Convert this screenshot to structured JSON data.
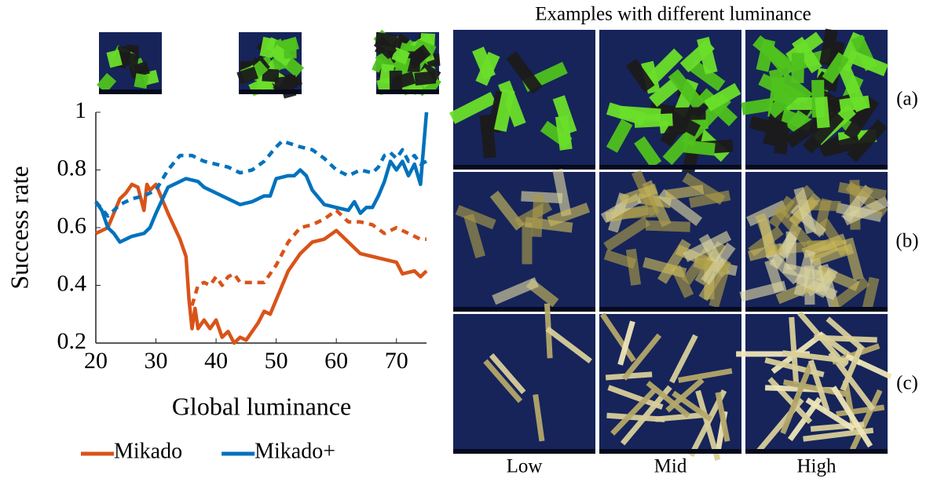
{
  "chart_data": {
    "type": "line",
    "xlabel": "Global luminance",
    "ylabel": "Success rate",
    "xlim": [
      20,
      75
    ],
    "ylim": [
      0.2,
      1
    ],
    "xticks": [
      20,
      30,
      40,
      50,
      60,
      70
    ],
    "yticks": [
      0.2,
      0.4,
      0.6,
      0.8,
      1
    ],
    "legend": "bottom",
    "series": [
      {
        "name": "Mikado",
        "color": "#d95319",
        "line_style": "solid",
        "x": [
          20,
          22,
          23,
          24,
          25,
          26,
          27,
          28,
          28.5,
          29,
          30,
          32,
          34,
          35,
          35.5,
          36,
          36.5,
          37,
          38,
          39,
          40,
          41,
          42,
          43,
          44,
          45,
          46,
          47,
          48,
          49,
          50,
          52,
          54,
          56,
          58,
          60,
          62,
          64,
          66,
          68,
          70,
          71,
          73,
          74,
          75
        ],
        "values": [
          0.58,
          0.6,
          0.65,
          0.7,
          0.72,
          0.75,
          0.74,
          0.66,
          0.75,
          0.73,
          0.75,
          0.65,
          0.56,
          0.5,
          0.35,
          0.25,
          0.32,
          0.25,
          0.28,
          0.25,
          0.28,
          0.22,
          0.24,
          0.2,
          0.22,
          0.21,
          0.24,
          0.27,
          0.31,
          0.3,
          0.35,
          0.45,
          0.51,
          0.55,
          0.56,
          0.59,
          0.55,
          0.51,
          0.5,
          0.49,
          0.48,
          0.44,
          0.45,
          0.43,
          0.45
        ]
      },
      {
        "color": "#d95319",
        "line_style": "dashed",
        "x": [
          36,
          37,
          38,
          39,
          40,
          41,
          42,
          43,
          44,
          46,
          48,
          50,
          52,
          54,
          56,
          58,
          60,
          62,
          64,
          66,
          68,
          70,
          72,
          74,
          75
        ],
        "values": [
          0.33,
          0.4,
          0.41,
          0.4,
          0.43,
          0.4,
          0.43,
          0.44,
          0.41,
          0.41,
          0.41,
          0.47,
          0.55,
          0.6,
          0.61,
          0.63,
          0.66,
          0.62,
          0.62,
          0.61,
          0.58,
          0.6,
          0.58,
          0.56,
          0.56
        ]
      },
      {
        "name": "Mikado+",
        "color": "#0072bd",
        "line_style": "solid",
        "x": [
          20,
          21,
          22,
          23,
          24,
          25,
          26,
          28,
          29,
          30,
          32,
          34,
          35,
          37,
          38,
          40,
          42,
          44,
          46,
          48,
          49,
          50,
          52,
          53,
          54,
          55,
          56,
          58,
          60,
          62,
          63,
          64,
          65,
          66,
          67,
          68,
          69,
          70,
          71,
          72,
          73,
          74,
          75
        ],
        "values": [
          0.69,
          0.66,
          0.6,
          0.58,
          0.55,
          0.56,
          0.57,
          0.58,
          0.6,
          0.65,
          0.74,
          0.76,
          0.77,
          0.76,
          0.74,
          0.72,
          0.7,
          0.68,
          0.69,
          0.71,
          0.71,
          0.77,
          0.78,
          0.78,
          0.8,
          0.78,
          0.73,
          0.68,
          0.67,
          0.66,
          0.69,
          0.65,
          0.67,
          0.67,
          0.71,
          0.76,
          0.83,
          0.8,
          0.83,
          0.78,
          0.82,
          0.75,
          1.0
        ]
      },
      {
        "color": "#0072bd",
        "line_style": "dashed",
        "x": [
          20,
          22,
          24,
          26,
          28,
          30,
          32,
          34,
          36,
          38,
          40,
          42,
          44,
          46,
          48,
          50,
          51,
          54,
          56,
          58,
          60,
          62,
          64,
          66,
          67,
          68,
          69,
          70,
          71,
          72,
          73,
          74,
          75
        ],
        "values": [
          0.69,
          0.64,
          0.68,
          0.7,
          0.71,
          0.73,
          0.8,
          0.85,
          0.85,
          0.83,
          0.82,
          0.81,
          0.79,
          0.8,
          0.83,
          0.88,
          0.9,
          0.88,
          0.87,
          0.84,
          0.8,
          0.78,
          0.8,
          0.79,
          0.81,
          0.85,
          0.86,
          0.84,
          0.87,
          0.83,
          0.85,
          0.82,
          0.83
        ]
      }
    ]
  },
  "examples": {
    "title": "Examples with different luminance",
    "rows": [
      "(a)",
      "(b)",
      "(c)"
    ],
    "columns": [
      "Low",
      "Mid",
      "High"
    ]
  }
}
